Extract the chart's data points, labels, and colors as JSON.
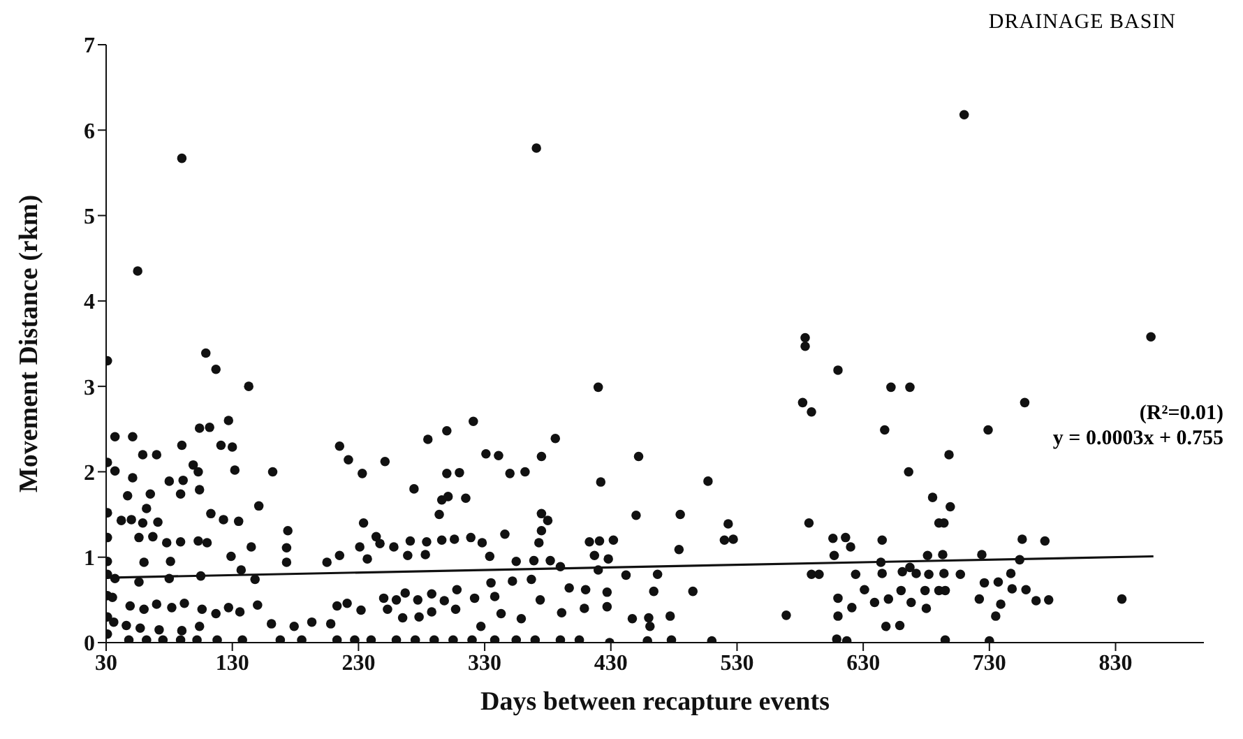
{
  "chart_data": {
    "type": "scatter",
    "title": "DRAINAGE BASIN",
    "xlabel": "Days between recapture events",
    "ylabel": "Movement Distance (rkm)",
    "annotations": [
      "(R²=0.01)",
      "y = 0.0003x + 0.755"
    ],
    "xlim": [
      30,
      900
    ],
    "xticks": [
      30,
      130,
      230,
      330,
      430,
      530,
      630,
      730,
      830
    ],
    "ylim": [
      0,
      7
    ],
    "yticks": [
      0,
      1,
      2,
      3,
      4,
      5,
      6,
      7
    ],
    "series": [
      {
        "type": "scatter",
        "color": "#111111",
        "marker": "circle",
        "x": [
          31,
          31,
          31,
          31,
          31,
          31,
          31,
          31,
          31,
          37,
          51,
          59,
          70,
          51,
          37,
          90,
          80,
          91,
          99,
          103,
          104,
          112,
          127,
          121,
          130,
          132,
          162,
          151,
          47,
          65,
          62,
          50,
          59,
          71,
          89,
          104,
          113,
          123,
          135,
          42,
          56,
          67,
          78,
          89,
          103,
          110,
          60,
          81,
          129,
          145,
          174,
          173,
          173,
          205,
          215,
          90,
          371,
          710,
          55,
          109,
          117,
          143,
          420,
          584,
          584,
          610,
          858,
          652,
          667,
          758,
          729,
          647,
          698,
          666,
          582,
          589,
          452,
          507,
          422,
          450,
          485,
          484,
          523,
          520,
          527,
          464,
          495,
          442,
          467,
          447,
          460,
          461,
          477,
          569,
          587,
          606,
          616,
          620,
          645,
          685,
          699,
          690,
          694,
          589,
          595,
          607,
          624,
          644,
          645,
          661,
          667,
          672,
          681,
          693,
          682,
          694,
          707,
          679,
          690,
          695,
          680,
          724,
          726,
          737,
          722,
          739,
          735,
          748,
          759,
          747,
          754,
          756,
          774,
          767,
          777,
          835,
          610,
          610,
          621,
          631,
          639,
          650,
          660,
          668,
          648,
          659,
          459,
          478,
          510,
          609,
          617,
          695,
          730,
          429,
          215,
          222,
          233,
          251,
          234,
          231,
          244,
          247,
          258,
          237,
          271,
          284,
          269,
          283,
          274,
          285,
          300,
          321,
          294,
          296,
          300,
          310,
          301,
          315,
          296,
          306,
          319,
          328,
          331,
          341,
          350,
          362,
          375,
          386,
          375,
          380,
          375,
          346,
          334,
          373,
          413,
          421,
          432,
          417,
          428,
          355,
          369,
          382,
          390,
          335,
          352,
          367,
          397,
          410,
          420,
          250,
          260,
          267,
          277,
          288,
          298,
          308,
          322,
          338,
          253,
          265,
          278,
          288,
          307,
          327,
          343,
          359,
          374,
          391,
          409,
          427,
          427,
          35,
          49,
          60,
          70,
          82,
          92,
          106,
          117,
          127,
          136,
          150,
          161,
          179,
          193,
          208,
          221,
          232,
          213,
          36,
          46,
          57,
          72,
          90,
          104,
          48,
          62,
          75,
          89,
          102,
          118,
          138,
          168,
          185,
          213,
          227,
          240,
          260,
          275,
          290,
          305,
          320,
          338,
          355,
          370,
          390,
          405,
          37,
          56,
          80,
          105,
          137,
          148
        ],
        "values": [
          0.1,
          0.3,
          0.55,
          0.8,
          0.95,
          1.23,
          1.52,
          2.11,
          3.3,
          2.41,
          2.41,
          2.2,
          2.2,
          1.93,
          2.01,
          2.31,
          1.89,
          1.9,
          2.08,
          2.0,
          2.51,
          2.52,
          2.6,
          2.31,
          2.29,
          2.02,
          2.0,
          1.6,
          1.72,
          1.74,
          1.57,
          1.44,
          1.4,
          1.41,
          1.74,
          1.79,
          1.51,
          1.44,
          1.42,
          1.43,
          1.23,
          1.24,
          1.17,
          1.18,
          1.19,
          1.17,
          0.94,
          0.95,
          1.01,
          1.12,
          1.31,
          1.11,
          0.94,
          0.94,
          1.02,
          5.67,
          5.79,
          6.18,
          4.35,
          3.39,
          3.2,
          3.0,
          2.99,
          3.57,
          3.47,
          3.19,
          3.58,
          2.99,
          2.99,
          2.81,
          2.49,
          2.49,
          2.2,
          2.0,
          2.81,
          2.7,
          2.18,
          1.89,
          1.88,
          1.49,
          1.5,
          1.09,
          1.39,
          1.2,
          1.21,
          0.6,
          0.6,
          0.79,
          0.8,
          0.28,
          0.29,
          0.19,
          0.31,
          0.32,
          1.4,
          1.22,
          1.23,
          1.12,
          1.2,
          1.7,
          1.59,
          1.4,
          1.4,
          0.8,
          0.8,
          1.02,
          0.8,
          0.94,
          0.81,
          0.83,
          0.88,
          0.81,
          1.02,
          1.03,
          0.8,
          0.81,
          0.8,
          0.61,
          0.61,
          0.61,
          0.4,
          1.03,
          0.7,
          0.71,
          0.51,
          0.45,
          0.31,
          0.63,
          0.62,
          0.81,
          0.97,
          1.21,
          1.19,
          0.49,
          0.5,
          0.51,
          0.52,
          0.31,
          0.41,
          0.62,
          0.47,
          0.51,
          0.61,
          0.47,
          0.19,
          0.2,
          0.02,
          0.03,
          0.02,
          0.04,
          0.02,
          0.03,
          0.02,
          0.0,
          2.3,
          2.14,
          1.98,
          2.12,
          1.4,
          1.12,
          1.24,
          1.16,
          1.12,
          0.98,
          1.19,
          1.18,
          1.02,
          1.03,
          1.8,
          2.38,
          2.48,
          2.59,
          1.5,
          1.67,
          1.98,
          1.99,
          1.71,
          1.69,
          1.2,
          1.21,
          1.23,
          1.17,
          2.21,
          2.19,
          1.98,
          2.0,
          2.18,
          2.39,
          1.51,
          1.43,
          1.31,
          1.27,
          1.01,
          1.17,
          1.18,
          1.19,
          1.2,
          1.02,
          0.98,
          0.95,
          0.96,
          0.96,
          0.89,
          0.7,
          0.72,
          0.74,
          0.64,
          0.62,
          0.85,
          0.52,
          0.5,
          0.58,
          0.5,
          0.57,
          0.49,
          0.62,
          0.52,
          0.54,
          0.39,
          0.29,
          0.3,
          0.36,
          0.39,
          0.19,
          0.34,
          0.28,
          0.5,
          0.35,
          0.4,
          0.59,
          0.42,
          0.53,
          0.43,
          0.39,
          0.45,
          0.41,
          0.46,
          0.39,
          0.34,
          0.41,
          0.36,
          0.44,
          0.22,
          0.19,
          0.24,
          0.22,
          0.46,
          0.38,
          0.43,
          0.24,
          0.2,
          0.17,
          0.15,
          0.14,
          0.19,
          0.03,
          0.03,
          0.03,
          0.03,
          0.03,
          0.03,
          0.03,
          0.03,
          0.03,
          0.03,
          0.03,
          0.03,
          0.03,
          0.03,
          0.03,
          0.03,
          0.03,
          0.03,
          0.03,
          0.03,
          0.03,
          0.03,
          0.75,
          0.71,
          0.75,
          0.78,
          0.85,
          0.74
        ]
      },
      {
        "type": "line",
        "color": "#111111",
        "marker": "none",
        "x": [
          30,
          860
        ],
        "values": [
          0.76,
          1.01
        ]
      }
    ]
  }
}
